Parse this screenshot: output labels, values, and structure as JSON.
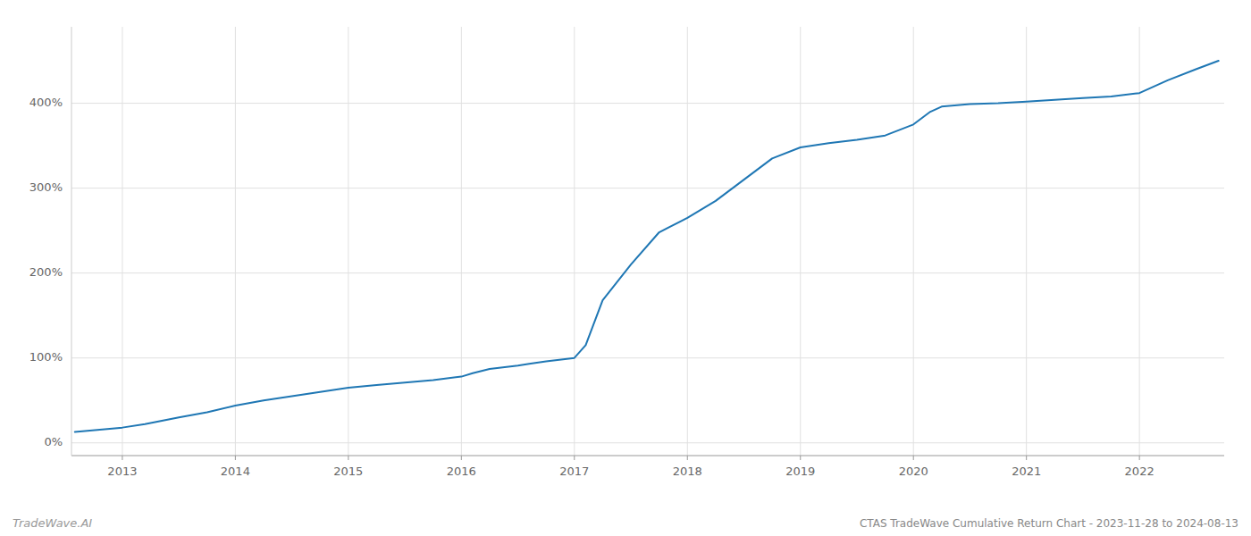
{
  "chart_data": {
    "type": "line",
    "title": "CTAS TradeWave Cumulative Return Chart - 2023-11-28 to 2024-08-13",
    "annotations": [
      "TradeWave.AI"
    ],
    "color": "#1f77b4",
    "grid": true,
    "xlim": [
      2012.55,
      2022.75
    ],
    "xticks": [
      2013,
      2014,
      2015,
      2016,
      2017,
      2018,
      2019,
      2020,
      2021,
      2022
    ],
    "ylim": [
      -15,
      490
    ],
    "yticks": [
      {
        "value": 0,
        "label": "0%"
      },
      {
        "value": 100,
        "label": "100%"
      },
      {
        "value": 200,
        "label": "200%"
      },
      {
        "value": 300,
        "label": "300%"
      },
      {
        "value": 400,
        "label": "400%"
      }
    ],
    "x": [
      2012.58,
      2013.0,
      2013.2,
      2013.5,
      2013.75,
      2014.0,
      2014.25,
      2014.5,
      2014.75,
      2015.0,
      2015.25,
      2015.5,
      2015.75,
      2016.0,
      2016.1,
      2016.25,
      2016.5,
      2016.6,
      2016.75,
      2017.0,
      2017.1,
      2017.25,
      2017.5,
      2017.75,
      2018.0,
      2018.25,
      2018.5,
      2018.75,
      2019.0,
      2019.25,
      2019.5,
      2019.75,
      2020.0,
      2020.15,
      2020.25,
      2020.5,
      2020.75,
      2021.0,
      2021.25,
      2021.5,
      2021.75,
      2022.0,
      2022.25,
      2022.5,
      2022.7
    ],
    "values": [
      13,
      18,
      22,
      30,
      36,
      44,
      50,
      55,
      60,
      65,
      68,
      71,
      74,
      78,
      82,
      87,
      91,
      93,
      96,
      100,
      115,
      168,
      210,
      248,
      265,
      285,
      310,
      335,
      348,
      353,
      357,
      362,
      375,
      390,
      396,
      399,
      400,
      402,
      404,
      406,
      408,
      412,
      427,
      440,
      450
    ]
  }
}
